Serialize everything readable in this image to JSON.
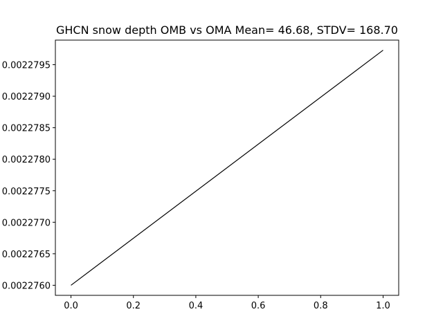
{
  "chart_data": {
    "type": "line",
    "title": "GHCN snow depth OMB vs OMA Mean= 46.68, STDV= 168.70",
    "xlabel": "",
    "ylabel": "",
    "x_ticks": [
      "0.0",
      "0.2",
      "0.4",
      "0.6",
      "0.8",
      "1.0"
    ],
    "y_ticks": [
      "0.0022760",
      "0.0022765",
      "0.0022770",
      "0.0022775",
      "0.0022780",
      "0.0022785",
      "0.0022790",
      "0.0022795"
    ],
    "xlim": [
      -0.05,
      1.05
    ],
    "ylim": [
      0.00227584,
      0.00227989
    ],
    "grid": false,
    "series": [
      {
        "color": "#000000",
        "x": [
          0.0,
          1.0
        ],
        "y": [
          0.002276,
          0.00227973
        ]
      }
    ]
  }
}
